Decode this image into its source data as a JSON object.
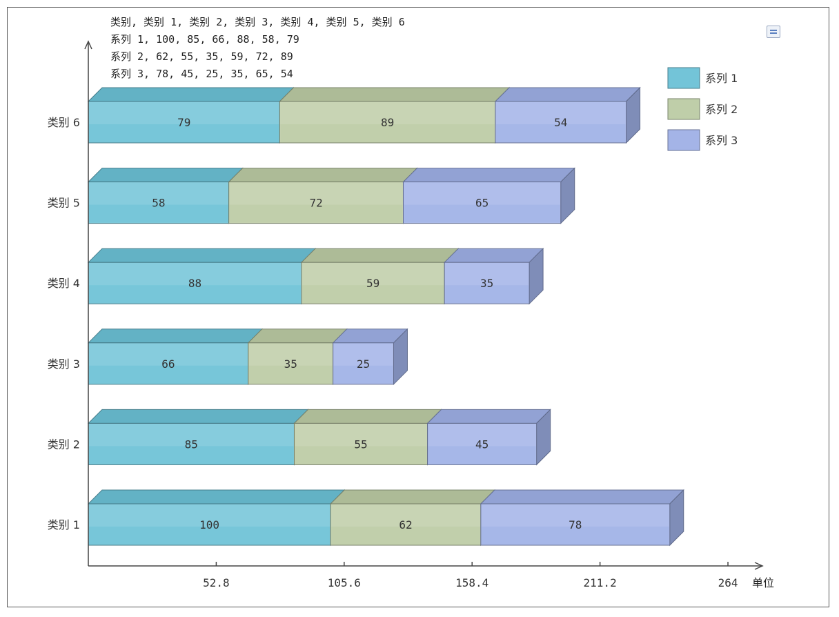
{
  "chart_data": {
    "type": "bar",
    "orientation": "horizontal",
    "stacked": true,
    "style": "3d",
    "data_text_lines": [
      "类别, 类别 1, 类别 2, 类别 3, 类别 4, 类别 5, 类别 6",
      "系列 1, 100, 85, 66, 88, 58, 79",
      "系列 2, 62, 55, 35, 59, 72, 89",
      "系列 3, 78, 45, 25, 35, 65, 54"
    ],
    "categories": [
      "类别 1",
      "类别 2",
      "类别 3",
      "类别 4",
      "类别 5",
      "类别 6"
    ],
    "series": [
      {
        "name": "系列 1",
        "values": [
          100,
          85,
          66,
          88,
          58,
          79
        ],
        "color": "#6cc1d6"
      },
      {
        "name": "系列 2",
        "values": [
          62,
          55,
          35,
          59,
          72,
          89
        ],
        "color": "#bccba4"
      },
      {
        "name": "系列 3",
        "values": [
          78,
          45,
          25,
          35,
          65,
          54
        ],
        "color": "#9fb0e6"
      }
    ],
    "x_ticks": [
      "52.8",
      "105.6",
      "158.4",
      "211.2",
      "264"
    ],
    "x_tick_values": [
      52.8,
      105.6,
      158.4,
      211.2,
      264
    ],
    "xlim": [
      0,
      264
    ],
    "x_unit_label": "单位",
    "legend_position": "top-right",
    "grid": false
  }
}
